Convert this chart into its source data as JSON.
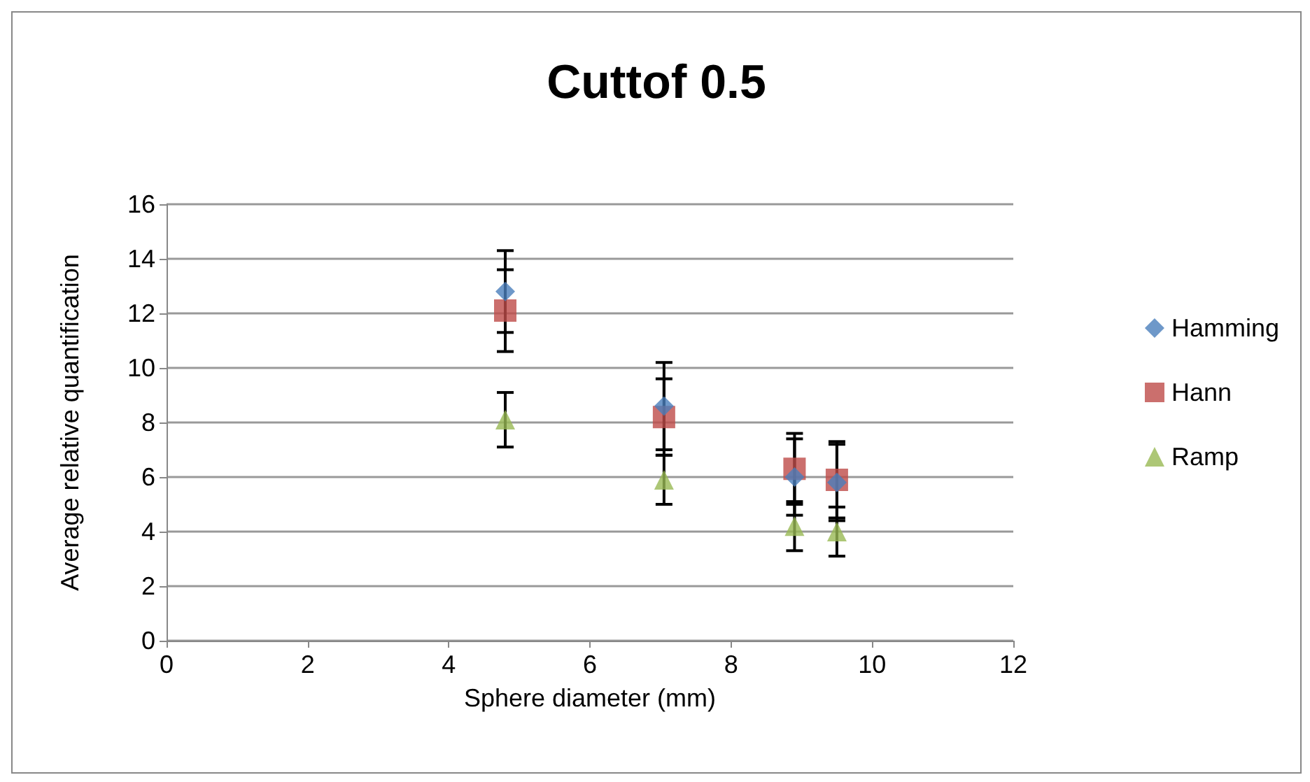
{
  "chart_data": {
    "type": "scatter",
    "title": "Cuttof 0.5",
    "xlabel": "Sphere diameter (mm)",
    "ylabel": "Average relative quantification",
    "x": [
      4.8,
      7.05,
      8.9,
      9.5
    ],
    "series": [
      {
        "name": "Hamming",
        "color": "#4a7ebb",
        "marker": "diamond",
        "values": [
          12.8,
          8.6,
          6.0,
          5.8
        ],
        "errors": [
          1.5,
          1.6,
          1.4,
          1.4
        ]
      },
      {
        "name": "Hann",
        "color": "#be4b48",
        "marker": "square",
        "values": [
          12.1,
          8.2,
          6.3,
          5.9
        ],
        "errors": [
          1.5,
          1.4,
          1.3,
          1.4
        ]
      },
      {
        "name": "Ramp",
        "color": "#98b954",
        "marker": "triangle",
        "values": [
          8.1,
          5.9,
          4.2,
          4.0
        ],
        "errors": [
          1.0,
          0.9,
          0.9,
          0.9
        ]
      }
    ],
    "xlim": [
      0,
      12
    ],
    "xticks": [
      0,
      2,
      4,
      6,
      8,
      10,
      12
    ],
    "ylim": [
      0,
      16
    ],
    "yticks": [
      0,
      2,
      4,
      6,
      8,
      10,
      12,
      14,
      16
    ],
    "grid": "y",
    "legend": "right"
  }
}
